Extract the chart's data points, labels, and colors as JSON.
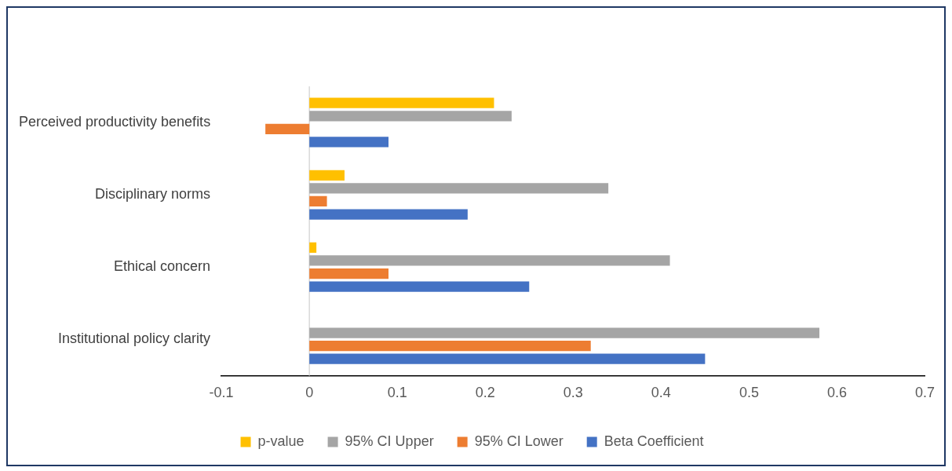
{
  "chart_data": {
    "type": "bar",
    "orientation": "horizontal",
    "categories": [
      "Perceived productivity benefits",
      "Disciplinary norms",
      "Ethical concern",
      "Institutional policy clarity"
    ],
    "series": [
      {
        "name": "p-value",
        "color": "#ffc000",
        "values": [
          0.21,
          0.04,
          0.008,
          0
        ]
      },
      {
        "name": "95% CI Upper",
        "color": "#a5a5a5",
        "values": [
          0.23,
          0.34,
          0.41,
          0.58
        ]
      },
      {
        "name": "95% CI Lower",
        "color": "#ed7d31",
        "values": [
          -0.05,
          0.02,
          0.09,
          0.32
        ]
      },
      {
        "name": "Beta Coefficient",
        "color": "#4472c4",
        "values": [
          0.09,
          0.18,
          0.25,
          0.45
        ]
      }
    ],
    "xlim": [
      -0.1,
      0.7
    ],
    "xticks": [
      -0.1,
      0,
      0.1,
      0.2,
      0.3,
      0.4,
      0.5,
      0.6,
      0.7
    ],
    "grid": false,
    "ref_lines": [
      {
        "axis": "x",
        "value": 0,
        "color": "#d9d9d9"
      }
    ],
    "legend": "bottom"
  }
}
